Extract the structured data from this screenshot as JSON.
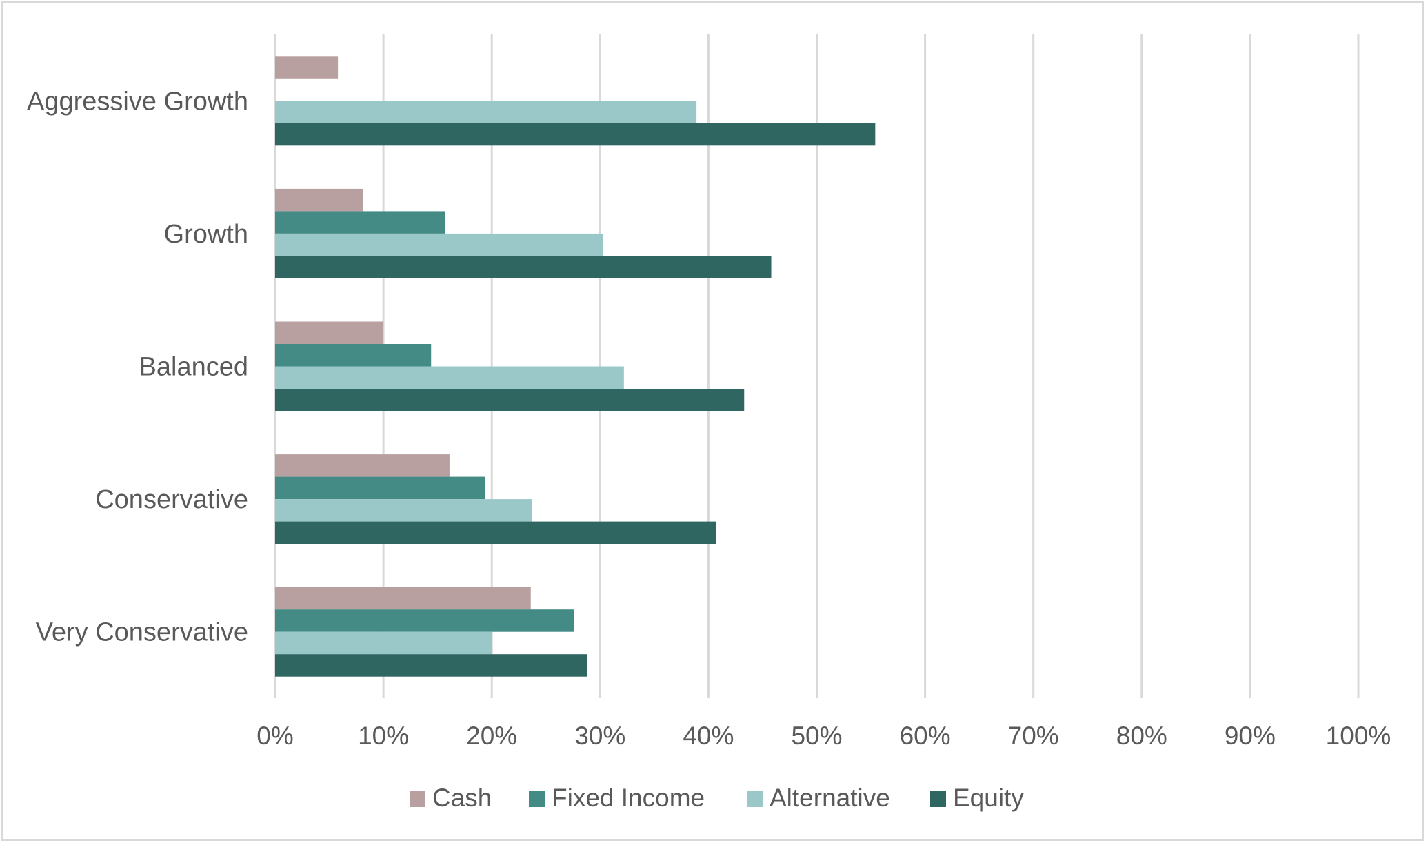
{
  "chart_data": {
    "type": "bar",
    "orientation": "horizontal",
    "categories": [
      "Very Conservative",
      "Conservative",
      "Balanced",
      "Growth",
      "Aggressive Growth"
    ],
    "series": [
      {
        "name": "Cash",
        "color": "#b9a0a0",
        "values": [
          23.6,
          16.1,
          10.0,
          8.1,
          5.8
        ]
      },
      {
        "name": "Fixed Income",
        "color": "#448b86",
        "values": [
          27.6,
          19.4,
          14.4,
          15.7,
          0
        ]
      },
      {
        "name": "Alternative",
        "color": "#9ac8c9",
        "values": [
          20.0,
          23.7,
          32.2,
          30.3,
          38.9
        ]
      },
      {
        "name": "Equity",
        "color": "#306662",
        "values": [
          28.8,
          40.7,
          43.3,
          45.8,
          55.4
        ]
      }
    ],
    "x_ticks": [
      "0%",
      "10%",
      "20%",
      "30%",
      "40%",
      "50%",
      "60%",
      "70%",
      "80%",
      "90%",
      "100%"
    ],
    "xlim": [
      0,
      100
    ],
    "x_unit": "%",
    "grid": "vertical",
    "legend_position": "bottom",
    "title": "",
    "xlabel": "",
    "ylabel": ""
  }
}
